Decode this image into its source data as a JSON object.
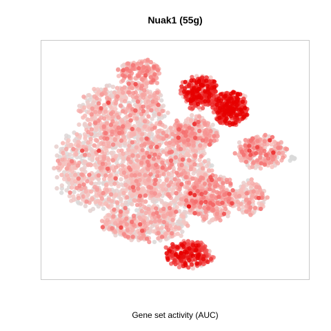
{
  "chart_data": {
    "type": "scatter",
    "title": "Nuak1 (55g)",
    "xlabel": "Gene set activity (AUC)",
    "ylabel": "",
    "grid": false,
    "legend": "none",
    "colors": {
      "low": "#d9d9d9",
      "mid": "#f7c4c0",
      "high": "#f56f6f",
      "max": "#e60000",
      "panel_border": "#c8c8c8"
    },
    "clusters": [
      {
        "name": "main-body-west",
        "cx": 0.24,
        "cy": 0.52,
        "rx": 0.2,
        "ry": 0.19,
        "n": 900,
        "level": 0.18
      },
      {
        "name": "main-body-center",
        "cx": 0.46,
        "cy": 0.55,
        "rx": 0.16,
        "ry": 0.2,
        "n": 900,
        "level": 0.2
      },
      {
        "name": "main-body-north",
        "cx": 0.3,
        "cy": 0.28,
        "rx": 0.16,
        "ry": 0.12,
        "n": 520,
        "level": 0.22
      },
      {
        "name": "main-body-south",
        "cx": 0.38,
        "cy": 0.78,
        "rx": 0.16,
        "ry": 0.07,
        "n": 380,
        "level": 0.2
      },
      {
        "name": "upper-left-patch",
        "cx": 0.36,
        "cy": 0.12,
        "rx": 0.08,
        "ry": 0.06,
        "n": 170,
        "level": 0.38
      },
      {
        "name": "top-hotspot",
        "cx": 0.59,
        "cy": 0.2,
        "rx": 0.07,
        "ry": 0.07,
        "n": 260,
        "level": 0.72
      },
      {
        "name": "right-hotspot",
        "cx": 0.71,
        "cy": 0.27,
        "rx": 0.07,
        "ry": 0.07,
        "n": 280,
        "level": 0.8
      },
      {
        "name": "ridge-upper-right",
        "cx": 0.57,
        "cy": 0.38,
        "rx": 0.09,
        "ry": 0.07,
        "n": 260,
        "level": 0.3
      },
      {
        "name": "east-band",
        "cx": 0.64,
        "cy": 0.66,
        "rx": 0.1,
        "ry": 0.1,
        "n": 380,
        "level": 0.34
      },
      {
        "name": "far-east-arm",
        "cx": 0.83,
        "cy": 0.46,
        "rx": 0.09,
        "ry": 0.07,
        "n": 230,
        "level": 0.34
      },
      {
        "name": "far-east-lower",
        "cx": 0.79,
        "cy": 0.66,
        "rx": 0.06,
        "ry": 0.07,
        "n": 140,
        "level": 0.26
      },
      {
        "name": "bottom-hotspot",
        "cx": 0.55,
        "cy": 0.91,
        "rx": 0.09,
        "ry": 0.055,
        "n": 240,
        "level": 0.72
      },
      {
        "name": "grey-tip",
        "cx": 0.95,
        "cy": 0.49,
        "rx": 0.012,
        "ry": 0.012,
        "n": 8,
        "level": 0.0
      }
    ]
  }
}
